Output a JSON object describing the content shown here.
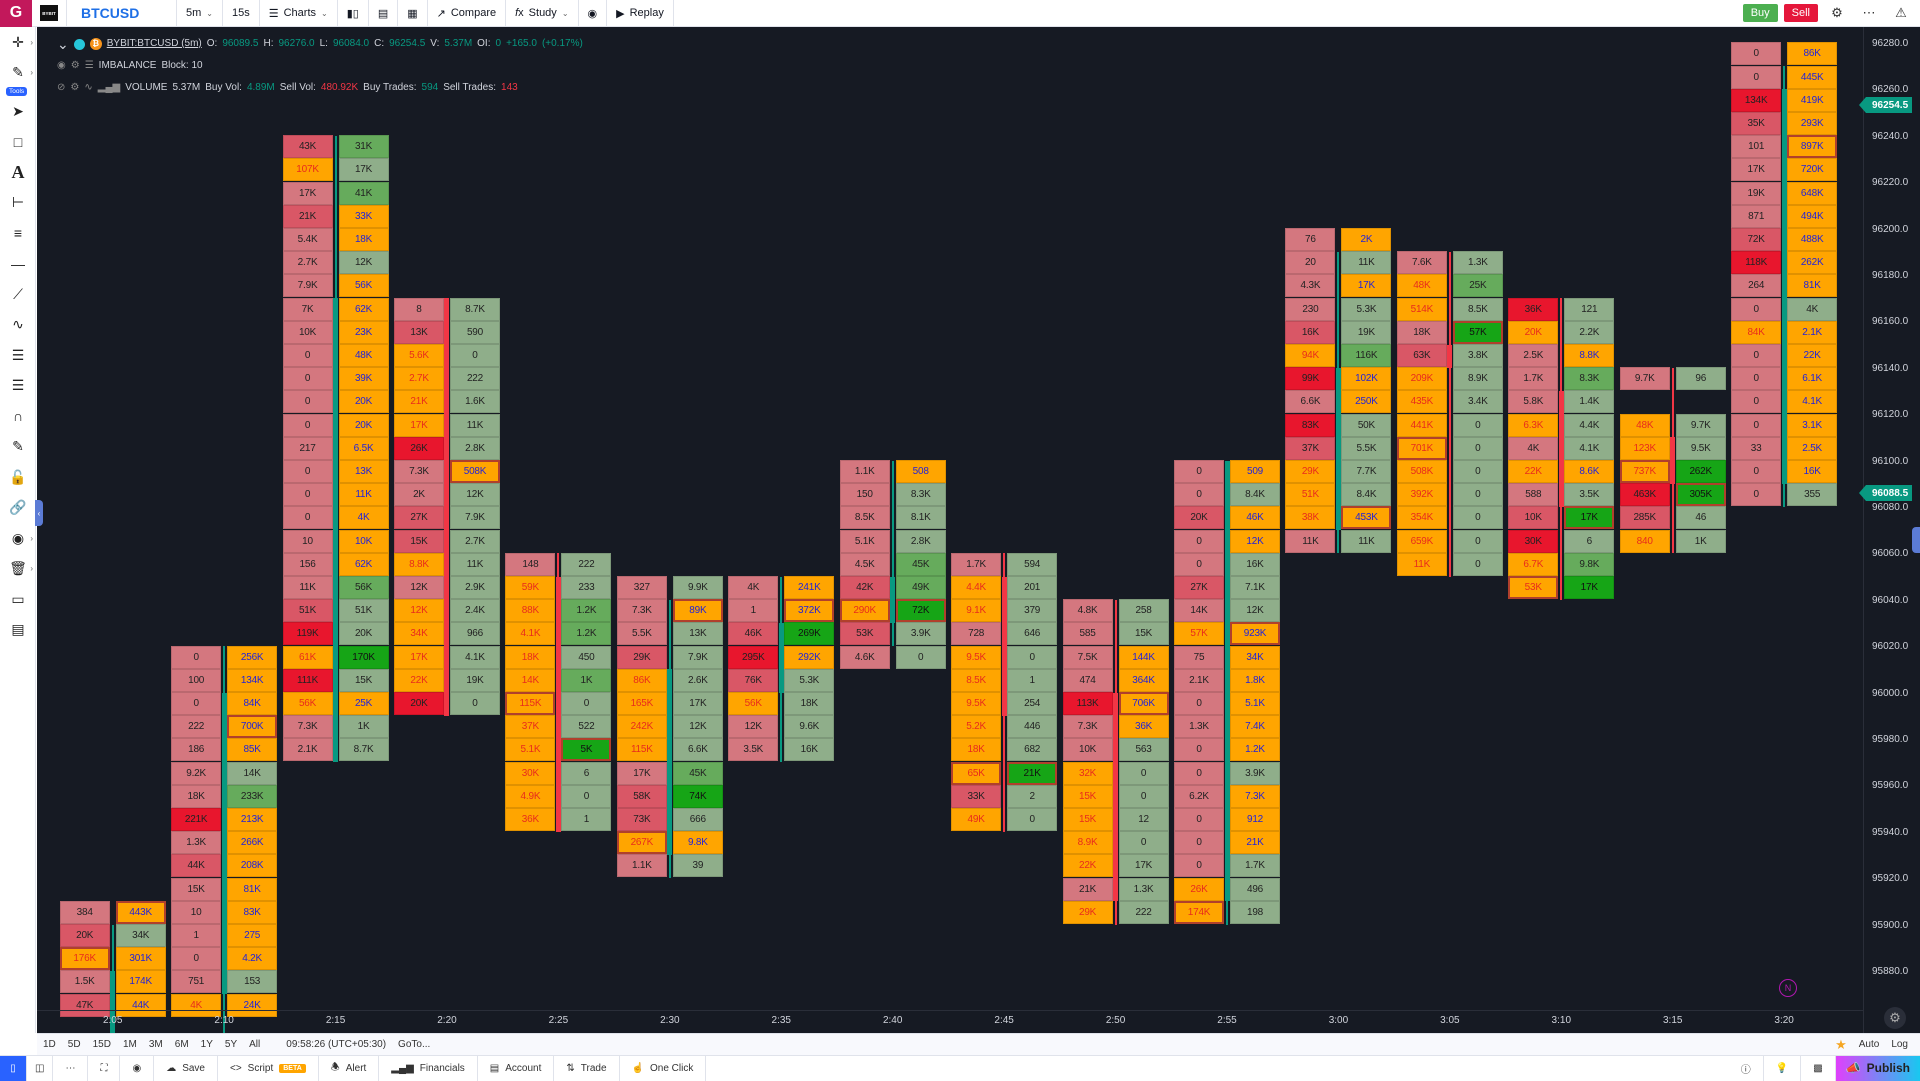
{
  "topbar": {
    "logo_letter": "G",
    "exchange_logo": "BYBIT",
    "symbol": "BTCUSD",
    "interval": "5m",
    "tick_interval": "15s",
    "charts_label": "Charts",
    "compare_label": "Compare",
    "study_label": "Study",
    "replay_label": "Replay",
    "buy_label": "Buy",
    "sell_label": "Sell"
  },
  "legend": {
    "symbol_full": "BYBIT:BTCUSD (5m)",
    "o_label": "O:",
    "o": "96089.5",
    "h_label": "H:",
    "h": "96276.0",
    "l_label": "L:",
    "l": "96084.0",
    "c_label": "C:",
    "c": "96254.5",
    "v_label": "V:",
    "v": "5.37M",
    "oi_label": "OI:",
    "oi": "0",
    "change": "+165.0",
    "change_pct": "(+0.17%)",
    "imbalance_name": "IMBALANCE",
    "imbalance_params": "Block: 10",
    "volume_name": "VOLUME",
    "volume_total": "5.37M",
    "buy_vol_label": "Buy Vol:",
    "buy_vol": "4.89M",
    "sell_vol_label": "Sell Vol:",
    "sell_vol": "480.92K",
    "buy_trades_label": "Buy Trades:",
    "buy_trades": "594",
    "sell_trades_label": "Sell Trades:",
    "sell_trades": "143"
  },
  "colors": {
    "up": "#089981",
    "down": "#f23645",
    "accent": "#2962ff",
    "chart_bg": "#161a23"
  },
  "price_axis": {
    "labels": [
      "96280.0",
      "96260.0",
      "96240.0",
      "96220.0",
      "96200.0",
      "96180.0",
      "96160.0",
      "96140.0",
      "96120.0",
      "96100.0",
      "96080.0",
      "96060.0",
      "96040.0",
      "96020.0",
      "96000.0",
      "95980.0",
      "95960.0",
      "95940.0",
      "95920.0",
      "95900.0",
      "95880.0"
    ],
    "last_price_tag": "96254.5",
    "open_price_tag": "96088.5"
  },
  "time_axis": {
    "labels": [
      "2:05",
      "2:10",
      "2:15",
      "2:20",
      "2:25",
      "2:30",
      "2:35",
      "2:40",
      "2:45",
      "2:50",
      "2:55",
      "3:00",
      "3:05",
      "3:10",
      "3:15",
      "3:20"
    ]
  },
  "chart_data": {
    "type": "footprint",
    "title": "BYBIT:BTCUSD (5m) Imbalance footprint",
    "row_size": 10,
    "legend_codes": {
      "p": "sell low",
      "m": "sell medium",
      "r": "sell high",
      "o": "imbalance",
      "g": "buy low",
      "h": "buy medium",
      "G": "buy high",
      "*": "max-volume outlined"
    },
    "candles": [
      {
        "time": "2:05",
        "dir": "up",
        "top_row": 37,
        "body": [
          40,
          42
        ],
        "wick": [
          38,
          42
        ],
        "sell": [
          "384|p",
          "20K|m",
          "176K|o*",
          "1.5K|p",
          "47K|m"
        ],
        "buy": [
          "443K|o*",
          "34K|g",
          "301K|o",
          "174K|o",
          "44K|o"
        ]
      },
      {
        "time": "2:10",
        "dir": "up",
        "top_row": 26,
        "body": [
          28,
          40
        ],
        "wick": [
          26,
          42
        ],
        "sell": [
          "0|p",
          "100|p",
          "0|p",
          "222|p",
          "186|p",
          "9.2K|p",
          "18K|p",
          "221K|r",
          "1.3K|p",
          "44K|m",
          "15K|p",
          "10|p",
          "1|p",
          "0|p",
          "751|p",
          "4K|o"
        ],
        "buy": [
          "256K|o",
          "134K|o",
          "84K|o",
          "700K|o*",
          "85K|o",
          "14K|g",
          "233K|h",
          "213K|o",
          "266K|o",
          "208K|o",
          "81K|o",
          "83K|o",
          "275|o",
          "4.2K|o",
          "153|g",
          "24K|o"
        ]
      },
      {
        "time": "2:15",
        "dir": "up",
        "top_row": 4,
        "body": [
          11,
          30
        ],
        "wick": [
          4,
          30
        ],
        "sell": [
          "43K|m",
          "107K|o",
          "17K|p",
          "21K|m",
          "5.4K|p",
          "2.7K|p",
          "7.9K|p",
          "7K|p",
          "10K|p",
          "0|p",
          "0|p",
          "0|p",
          "0|p",
          "217|p",
          "0|p",
          "0|p",
          "0|p",
          "10|p",
          "156|p",
          "11K|p",
          "51K|m",
          "119K|r",
          "61K|o",
          "111K|r",
          "56K|o",
          "7.3K|p",
          "2.1K|p"
        ],
        "buy": [
          "31K|h",
          "17K|g",
          "41K|h",
          "33K|o",
          "18K|o",
          "12K|g",
          "56K|o",
          "62K|o",
          "23K|o",
          "48K|o",
          "39K|o",
          "20K|o",
          "20K|o",
          "6.5K|o",
          "13K|o",
          "11K|o",
          "4K|o",
          "10K|o",
          "62K|o",
          "56K|h",
          "51K|g",
          "20K|g",
          "170K|G",
          "15K|g",
          "25K|o",
          "1K|g",
          "8.7K|g"
        ]
      },
      {
        "time": "2:20",
        "dir": "down",
        "top_row": 11,
        "body": [
          11,
          28
        ],
        "wick": [
          11,
          28
        ],
        "sell": [
          "8|p",
          "13K|m",
          "5.6K|o",
          "2.7K|o",
          "21K|o",
          "17K|o",
          "26K|r",
          "7.3K|p",
          "2K|p",
          "27K|m",
          "15K|m",
          "8.8K|o",
          "12K|p",
          "12K|o",
          "34K|o",
          "17K|o",
          "22K|o",
          "20K|r"
        ],
        "buy": [
          "8.7K|g",
          "590|g",
          "0|g",
          "222|g",
          "1.6K|g",
          "11K|g",
          "2.8K|g",
          "508K|o*",
          "12K|g",
          "7.9K|g",
          "2.7K|g",
          "11K|g",
          "2.9K|g",
          "2.4K|g",
          "966|g",
          "4.1K|g",
          "19K|g",
          "0|g"
        ]
      },
      {
        "time": "2:25",
        "dir": "down",
        "top_row": 22,
        "body": [
          23,
          33
        ],
        "wick": [
          22,
          33
        ],
        "sell": [
          "148|p",
          "59K|o",
          "88K|o",
          "4.1K|o",
          "18K|o",
          "14K|o",
          "115K|o*",
          "37K|o",
          "5.1K|o",
          "30K|o",
          "4.9K|o",
          "36K|o"
        ],
        "buy": [
          "222|g",
          "233|g",
          "1.2K|h",
          "1.2K|h",
          "450|g",
          "1K|h",
          "0|g",
          "522|g",
          "5K|G*",
          "6|g",
          "0|g",
          "1|g"
        ]
      },
      {
        "time": "2:30",
        "dir": "up",
        "top_row": 23,
        "body": [
          27,
          34
        ],
        "wick": [
          24,
          35
        ],
        "sell": [
          "327|p",
          "7.3K|p",
          "5.5K|p",
          "29K|m",
          "86K|o",
          "165K|o",
          "242K|o",
          "115K|o",
          "17K|p",
          "58K|m",
          "73K|m",
          "267K|o*",
          "1.1K|p"
        ],
        "buy": [
          "9.9K|g",
          "89K|o*",
          "13K|g",
          "7.9K|g",
          "2.6K|g",
          "17K|g",
          "12K|g",
          "6.6K|g",
          "45K|h",
          "74K|G",
          "666|g",
          "9.8K|o",
          "39|g"
        ]
      },
      {
        "time": "2:35",
        "dir": "up",
        "top_row": 23,
        "body": [
          25,
          27
        ],
        "wick": [
          23,
          30
        ],
        "sell": [
          "4K|p",
          "1|p",
          "46K|m",
          "295K|r",
          "76K|m",
          "56K|o",
          "12K|p",
          "3.5K|p"
        ],
        "buy": [
          "241K|o",
          "372K|o*",
          "269K|G",
          "292K|o",
          "5.3K|g",
          "18K|g",
          "9.6K|g",
          "16K|g"
        ]
      },
      {
        "time": "2:40",
        "dir": "up",
        "top_row": 18,
        "body": [
          23,
          24
        ],
        "wick": [
          18,
          25
        ],
        "sell": [
          "1.1K|p",
          "150|p",
          "8.5K|p",
          "5.1K|p",
          "4.5K|p",
          "42K|m",
          "290K|o*",
          "53K|m",
          "4.6K|p"
        ],
        "buy": [
          "508|o",
          "8.3K|g",
          "8.1K|g",
          "2.8K|g",
          "45K|h",
          "49K|h",
          "72K|G*",
          "3.9K|g",
          "0|g"
        ]
      },
      {
        "time": "2:45",
        "dir": "down",
        "top_row": 22,
        "body": [
          23,
          28
        ],
        "wick": [
          22,
          33
        ],
        "sell": [
          "1.7K|p",
          "4.4K|o",
          "9.1K|o",
          "728|p",
          "9.5K|o",
          "8.5K|o",
          "9.5K|o",
          "5.2K|o",
          "18K|o",
          "65K|o*",
          "33K|m",
          "49K|o"
        ],
        "buy": [
          "594|g",
          "201|g",
          "379|g",
          "646|g",
          "0|g",
          "1|g",
          "254|g",
          "446|g",
          "682|g",
          "21K|G*",
          "2|g",
          "0|g"
        ]
      },
      {
        "time": "2:50",
        "dir": "down",
        "top_row": 24,
        "body": [
          28,
          36
        ],
        "wick": [
          24,
          37
        ],
        "sell": [
          "4.8K|p",
          "585|p",
          "7.5K|p",
          "474|p",
          "113K|r",
          "7.3K|p",
          "10K|p",
          "32K|o",
          "15K|o",
          "15K|o",
          "8.9K|o",
          "22K|o",
          "21K|p",
          "29K|o"
        ],
        "buy": [
          "258|g",
          "15K|g",
          "144K|o",
          "364K|o",
          "706K|o*",
          "36K|o",
          "563|g",
          "0|g",
          "0|g",
          "12|g",
          "0|g",
          "17K|g",
          "1.3K|g",
          "222|g"
        ]
      },
      {
        "time": "2:55",
        "dir": "up",
        "top_row": 18,
        "body": [
          18,
          36
        ],
        "wick": [
          18,
          37
        ],
        "sell": [
          "0|p",
          "0|p",
          "20K|m",
          "0|p",
          "0|p",
          "27K|m",
          "14K|p",
          "57K|o",
          "75|p",
          "2.1K|p",
          "0|p",
          "1.3K|p",
          "0|p",
          "0|p",
          "6.2K|p",
          "0|p",
          "0|p",
          "0|p",
          "26K|o",
          "174K|o*"
        ],
        "buy": [
          "509|o",
          "8.4K|g",
          "46K|o",
          "12K|o",
          "16K|g",
          "7.1K|g",
          "12K|g",
          "923K|o*",
          "34K|o",
          "1.8K|o",
          "5.1K|o",
          "7.4K|o",
          "1.2K|o",
          "3.9K|g",
          "7.3K|o",
          "912|o",
          "21K|o",
          "1.7K|g",
          "496|g",
          "198|g"
        ]
      },
      {
        "time": "3:00",
        "dir": "up",
        "top_row": 8,
        "body": [
          14,
          20
        ],
        "wick": [
          9,
          21
        ],
        "sell": [
          "76|p",
          "20|p",
          "4.3K|p",
          "230|p",
          "16K|m",
          "94K|o",
          "99K|r",
          "6.6K|p",
          "83K|r",
          "37K|m",
          "29K|o",
          "51K|o",
          "38K|o",
          "11K|p"
        ],
        "buy": [
          "2K|o",
          "11K|g",
          "17K|o",
          "5.3K|g",
          "19K|g",
          "116K|h",
          "102K|o",
          "250K|o",
          "50K|g",
          "5.5K|g",
          "7.7K|g",
          "8.4K|g",
          "453K|o*",
          "11K|g"
        ]
      },
      {
        "time": "3:05",
        "dir": "down",
        "top_row": 9,
        "body": [
          13,
          13
        ],
        "wick": [
          9,
          22
        ],
        "sell": [
          "7.6K|p",
          "48K|o",
          "514K|o",
          "18K|p",
          "63K|m",
          "209K|o",
          "435K|o",
          "441K|o",
          "701K|o*",
          "508K|o",
          "392K|o",
          "354K|o",
          "659K|o",
          "11K|o"
        ],
        "buy": [
          "1.3K|g",
          "25K|h",
          "8.5K|g",
          "57K|G*",
          "3.8K|g",
          "8.9K|g",
          "3.4K|g",
          "0|g",
          "0|g",
          "0|g",
          "0|g",
          "0|g",
          "0|g",
          "0|g"
        ]
      },
      {
        "time": "3:10",
        "dir": "down",
        "top_row": 11,
        "body": [
          15,
          19
        ],
        "wick": [
          11,
          23
        ],
        "sell": [
          "36K|r",
          "20K|o",
          "2.5K|p",
          "1.7K|p",
          "5.8K|p",
          "6.3K|o",
          "4K|p",
          "22K|o",
          "588|p",
          "10K|m",
          "30K|r",
          "6.7K|o",
          "53K|o*"
        ],
        "buy": [
          "121|g",
          "2.2K|g",
          "8.8K|o",
          "8.3K|h",
          "1.4K|g",
          "4.4K|g",
          "4.1K|g",
          "8.6K|o",
          "3.5K|g",
          "17K|G*",
          "6|g",
          "9.8K|h",
          "17K|G"
        ]
      },
      {
        "time": "3:15",
        "dir": "down",
        "top_row": 14,
        "body": [
          17,
          18
        ],
        "wick": [
          14,
          21
        ],
        "sell": [
          "9.7K|p",
          "|",
          "48K|o",
          "123K|o",
          "737K|o*",
          "463K|r",
          "285K|m",
          "840|o"
        ],
        "buy": [
          "96|g",
          "|",
          "9.7K|g",
          "9.5K|g",
          "262K|G",
          "305K|G*",
          "46|g",
          "1K|g"
        ]
      },
      {
        "time": "3:20",
        "dir": "up",
        "top_row": 0,
        "body": [
          2,
          18
        ],
        "wick": [
          1,
          19
        ],
        "sell": [
          "0|p",
          "0|p",
          "134K|r",
          "35K|m",
          "101|p",
          "17K|p",
          "19K|p",
          "871|p",
          "72K|m",
          "118K|r",
          "264|p",
          "0|p",
          "84K|o",
          "0|p",
          "0|p",
          "0|p",
          "0|p",
          "33|p",
          "0|p",
          "0|p"
        ],
        "buy": [
          "86K|o",
          "445K|o",
          "419K|o",
          "293K|o",
          "897K|o*",
          "720K|o",
          "648K|o",
          "494K|o",
          "488K|o",
          "262K|o",
          "81K|o",
          "4K|g",
          "2.1K|o",
          "22K|o",
          "6.1K|o",
          "4.1K|o",
          "3.1K|o",
          "2.5K|o",
          "16K|o",
          "355|g"
        ]
      }
    ]
  },
  "range_bar": {
    "ranges": [
      "1D",
      "5D",
      "15D",
      "1M",
      "3M",
      "6M",
      "1Y",
      "5Y",
      "All"
    ],
    "clock": "09:58:26 (UTC+05:30)",
    "goto": "GoTo...",
    "auto": "Auto",
    "log": "Log"
  },
  "bottombar": {
    "save": "Save",
    "script": "Script",
    "beta": "BETA",
    "alert": "Alert",
    "financials": "Financials",
    "account": "Account",
    "trade": "Trade",
    "one_click": "One Click",
    "publish": "Publish"
  },
  "left_tools": {
    "tools_badge": "Tools"
  },
  "overlay": {
    "n_marker": "N"
  }
}
